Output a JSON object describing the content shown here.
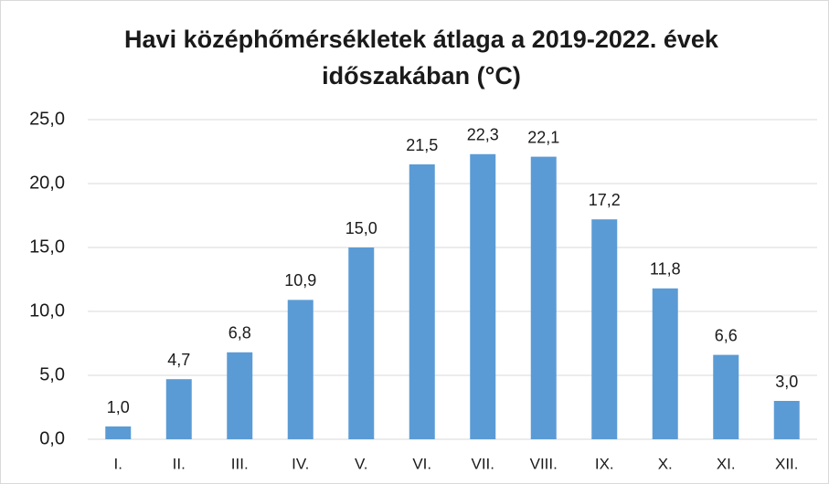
{
  "chart_data": {
    "type": "bar",
    "title": "Havi középhőmérsékletek átlaga a 2019-2022. évek időszakában (°C)",
    "categories": [
      "I.",
      "II.",
      "III.",
      "IV.",
      "V.",
      "VI.",
      "VII.",
      "VIII.",
      "IX.",
      "X.",
      "XI.",
      "XII."
    ],
    "values": [
      1.0,
      4.7,
      6.8,
      10.9,
      15.0,
      21.5,
      22.3,
      22.1,
      17.2,
      11.8,
      6.6,
      3.0
    ],
    "value_labels": [
      "1,0",
      "4,7",
      "6,8",
      "10,9",
      "15,0",
      "21,5",
      "22,3",
      "22,1",
      "17,2",
      "11,8",
      "6,6",
      "3,0"
    ],
    "color": "#5b9bd5",
    "ylim": [
      0,
      25
    ],
    "yticks": [
      {
        "value": 0,
        "label": "0,0"
      },
      {
        "value": 5,
        "label": "5,0"
      },
      {
        "value": 10,
        "label": "10,0"
      },
      {
        "value": 15,
        "label": "15,0"
      },
      {
        "value": 20,
        "label": "20,0"
      },
      {
        "value": 25,
        "label": "25,0"
      }
    ],
    "grid": true
  }
}
